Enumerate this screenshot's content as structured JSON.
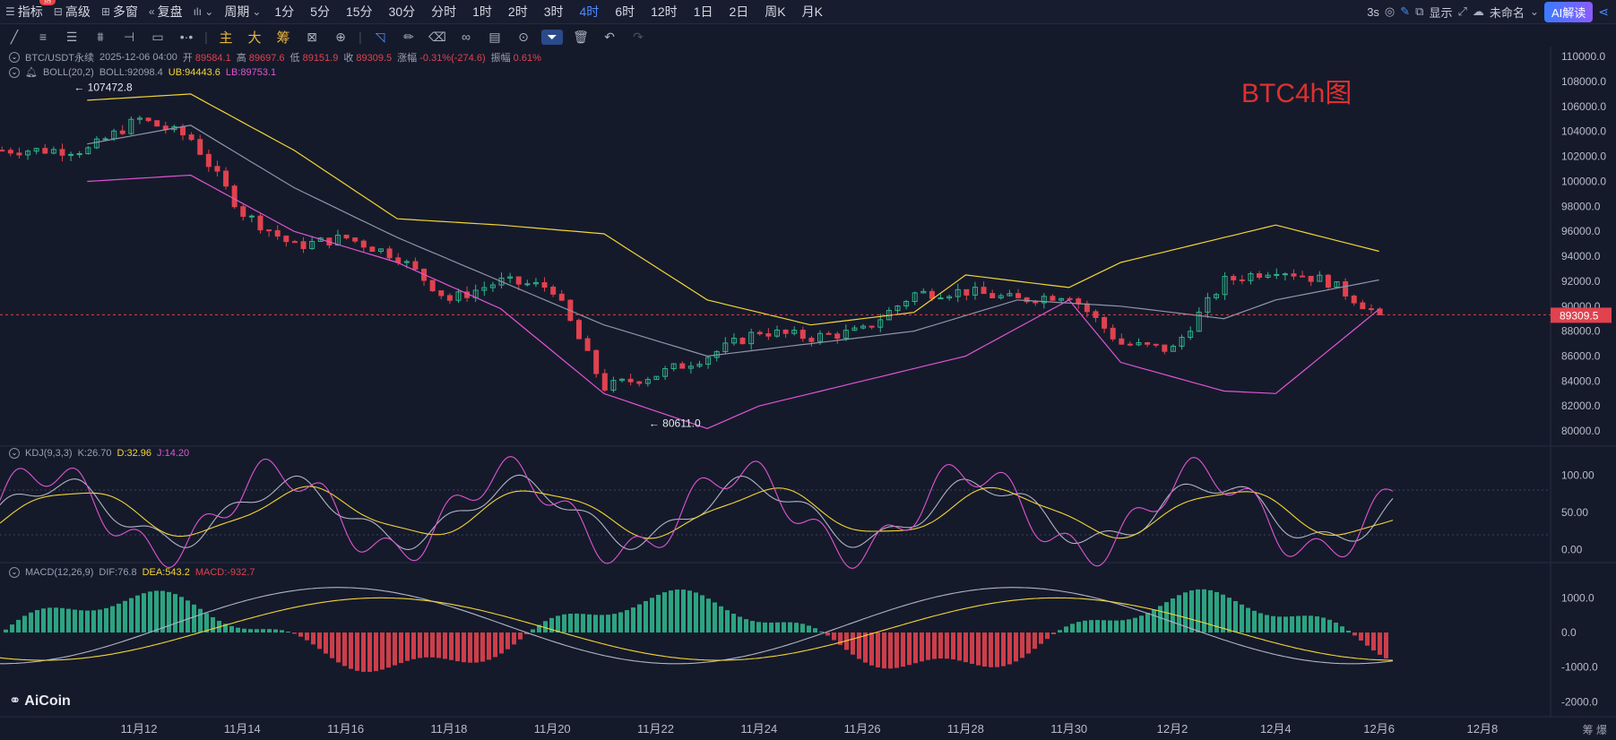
{
  "toolbar": {
    "items": [
      {
        "icon": "indicator-icon",
        "label": "指标"
      },
      {
        "icon": "layout-icon",
        "label": "高级"
      },
      {
        "icon": "multi-window-icon",
        "label": "多窗"
      },
      {
        "icon": "replay-icon",
        "label": "复盘"
      },
      {
        "icon": "chart-type-icon",
        "label": ""
      }
    ],
    "hot_badge": "热",
    "period_label": "周期",
    "periods": [
      "1分",
      "5分",
      "15分",
      "30分",
      "分时",
      "1时",
      "2时",
      "3时",
      "4时",
      "6时",
      "12时",
      "1日",
      "2日",
      "周K",
      "月K"
    ],
    "active_period": "4时",
    "right": {
      "refresh": "3s",
      "display": "显示",
      "layout_name": "未命名",
      "ai": "AI解读"
    }
  },
  "drawing": {
    "chip_labels": [
      "主",
      "大",
      "筹"
    ]
  },
  "legend": {
    "symbol": "BTC/USDT永续",
    "time": "2025-12-06 04:00",
    "open_label": "开",
    "open": "89584.1",
    "high_label": "高",
    "high": "89697.6",
    "low_label": "低",
    "low": "89151.9",
    "close_label": "收",
    "close": "89309.5",
    "change_label": "涨幅",
    "change": "-0.31%(-274.6)",
    "amp_label": "振幅",
    "amp": "0.61%",
    "boll": {
      "name": "BOLL(20,2)",
      "mid": "BOLL:92098.4",
      "ub": "UB:94443.6",
      "lb": "LB:89753.1"
    },
    "kdj": {
      "name": "KDJ(9,3,3)",
      "k": "K:26.70",
      "d": "D:32.96",
      "j": "J:14.20"
    },
    "macd": {
      "name": "MACD(12,26,9)",
      "dif": "DIF:76.8",
      "dea": "DEA:543.2",
      "macd": "MACD:-932.7"
    }
  },
  "annotation": "BTC4h图",
  "logo": "AiCoin",
  "bottom_right": "筹  爆",
  "colors": {
    "up": "#2fb38a",
    "down": "#e0424e",
    "boll_mid": "#8f95a8",
    "boll_ub": "#f4d534",
    "boll_lb": "#e055d2",
    "bg": "#151a2b"
  },
  "chart_data": {
    "type": "candlestick",
    "interval": "4h",
    "x_labels": [
      "11月12",
      "11月14",
      "11月16",
      "11月18",
      "11月20",
      "11月22",
      "11月24",
      "11月26",
      "11月28",
      "11月30",
      "12月2",
      "12月4",
      "12月6",
      "12月8"
    ],
    "price_axis": {
      "ticks": [
        80000,
        82000,
        84000,
        86000,
        88000,
        90000,
        92000,
        94000,
        96000,
        98000,
        100000,
        102000,
        104000,
        106000,
        108000,
        110000
      ],
      "range": [
        79000,
        110800
      ]
    },
    "current_price": 89309.5,
    "high_marker": {
      "value": "107472.8",
      "date": "11月11"
    },
    "low_marker": {
      "value": "80611.0",
      "date": "11月21"
    },
    "close_path": [
      {
        "t": "11月11",
        "v": 102500
      },
      {
        "t": "11月12",
        "v": 105000
      },
      {
        "t": "11月13",
        "v": 103500
      },
      {
        "t": "11月14",
        "v": 97500
      },
      {
        "t": "11月15",
        "v": 94800
      },
      {
        "t": "11月16",
        "v": 95500
      },
      {
        "t": "11月17",
        "v": 94000
      },
      {
        "t": "11月18",
        "v": 90500
      },
      {
        "t": "11月19",
        "v": 92000
      },
      {
        "t": "11月20",
        "v": 91500
      },
      {
        "t": "11月21",
        "v": 83500
      },
      {
        "t": "11月22",
        "v": 84500
      },
      {
        "t": "11月23",
        "v": 86000
      },
      {
        "t": "11月24",
        "v": 88000
      },
      {
        "t": "11月25",
        "v": 87500
      },
      {
        "t": "11月26",
        "v": 88000
      },
      {
        "t": "11月27",
        "v": 91000
      },
      {
        "t": "11月28",
        "v": 91200
      },
      {
        "t": "11月29",
        "v": 90500
      },
      {
        "t": "11月30",
        "v": 91000
      },
      {
        "t": "12月1",
        "v": 87000
      },
      {
        "t": "12月2",
        "v": 86500
      },
      {
        "t": "12月3",
        "v": 92000
      },
      {
        "t": "12月4",
        "v": 93000
      },
      {
        "t": "12月5",
        "v": 92000
      },
      {
        "t": "12月6",
        "v": 89309.5
      }
    ],
    "boll_ub": [
      {
        "t": "11月11",
        "v": 106500
      },
      {
        "t": "11月13",
        "v": 107000
      },
      {
        "t": "11月15",
        "v": 102500
      },
      {
        "t": "11月17",
        "v": 97000
      },
      {
        "t": "11月19",
        "v": 96500
      },
      {
        "t": "11月21",
        "v": 95800
      },
      {
        "t": "11月23",
        "v": 90500
      },
      {
        "t": "11月25",
        "v": 88500
      },
      {
        "t": "11月27",
        "v": 89500
      },
      {
        "t": "11月28",
        "v": 92500
      },
      {
        "t": "11月30",
        "v": 91500
      },
      {
        "t": "12月1",
        "v": 93500
      },
      {
        "t": "12月3",
        "v": 95500
      },
      {
        "t": "12月4",
        "v": 96500
      },
      {
        "t": "12月6",
        "v": 94400
      }
    ],
    "boll_mid": [
      {
        "t": "11月11",
        "v": 103000
      },
      {
        "t": "11月13",
        "v": 104500
      },
      {
        "t": "11月15",
        "v": 99500
      },
      {
        "t": "11月17",
        "v": 95500
      },
      {
        "t": "11月19",
        "v": 92000
      },
      {
        "t": "11月21",
        "v": 88500
      },
      {
        "t": "11月23",
        "v": 86000
      },
      {
        "t": "11月25",
        "v": 87000
      },
      {
        "t": "11月27",
        "v": 88000
      },
      {
        "t": "11月29",
        "v": 90500
      },
      {
        "t": "12月1",
        "v": 90000
      },
      {
        "t": "12月3",
        "v": 89000
      },
      {
        "t": "12月4",
        "v": 90500
      },
      {
        "t": "12月6",
        "v": 92100
      }
    ],
    "boll_lb": [
      {
        "t": "11月11",
        "v": 100000
      },
      {
        "t": "11月13",
        "v": 100500
      },
      {
        "t": "11月15",
        "v": 96000
      },
      {
        "t": "11月17",
        "v": 93500
      },
      {
        "t": "11月19",
        "v": 89800
      },
      {
        "t": "11月21",
        "v": 83000
      },
      {
        "t": "11月23",
        "v": 80200
      },
      {
        "t": "11月24",
        "v": 82000
      },
      {
        "t": "11月26",
        "v": 84000
      },
      {
        "t": "11月28",
        "v": 86000
      },
      {
        "t": "11月30",
        "v": 90500
      },
      {
        "t": "12月1",
        "v": 85500
      },
      {
        "t": "12月3",
        "v": 83200
      },
      {
        "t": "12月4",
        "v": 83000
      },
      {
        "t": "12月6",
        "v": 89750
      }
    ],
    "kdj_axis": {
      "ticks": [
        0,
        50,
        100
      ]
    },
    "macd_axis": {
      "ticks": [
        -2000,
        -1000,
        0,
        1000
      ]
    }
  }
}
